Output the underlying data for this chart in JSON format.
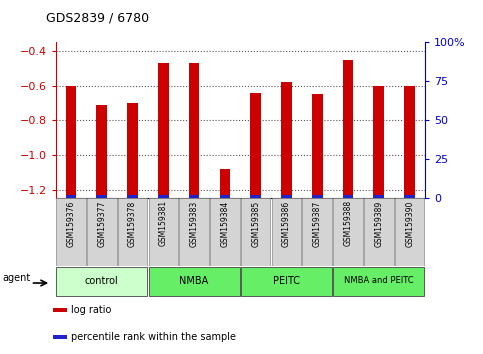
{
  "title": "GDS2839 / 6780",
  "samples": [
    "GSM159376",
    "GSM159377",
    "GSM159378",
    "GSM159381",
    "GSM159383",
    "GSM159384",
    "GSM159385",
    "GSM159386",
    "GSM159387",
    "GSM159388",
    "GSM159389",
    "GSM159390"
  ],
  "log_ratios": [
    -0.6,
    -0.71,
    -0.7,
    -0.47,
    -0.47,
    -1.08,
    -0.64,
    -0.58,
    -0.65,
    -0.45,
    -0.6,
    -0.6
  ],
  "percentile_ranks": [
    2,
    2,
    2,
    2,
    2,
    2,
    2,
    2,
    2,
    2,
    2,
    2
  ],
  "ylim_left": [
    -1.25,
    -0.35
  ],
  "ylim_right": [
    0,
    100
  ],
  "y_ticks_left": [
    -1.2,
    -1.0,
    -0.8,
    -0.6,
    -0.4
  ],
  "y_ticks_right": [
    0,
    25,
    50,
    75,
    100
  ],
  "bar_color_red": "#cc0000",
  "bar_color_blue": "#2222cc",
  "tick_color_left": "#cc0000",
  "tick_color_right": "#0000cc",
  "grid_color": "#555555",
  "bar_bg_color": "#d4d4d4",
  "group_defs": [
    {
      "label": "control",
      "start": 0,
      "end": 2,
      "color": "#ccffcc"
    },
    {
      "label": "NMBA",
      "start": 3,
      "end": 5,
      "color": "#66ee66"
    },
    {
      "label": "PEITC",
      "start": 6,
      "end": 8,
      "color": "#66ee66"
    },
    {
      "label": "NMBA and PEITC",
      "start": 9,
      "end": 11,
      "color": "#66ee66"
    }
  ],
  "legend_items": [
    {
      "color": "#cc0000",
      "label": "log ratio"
    },
    {
      "color": "#2222cc",
      "label": "percentile rank within the sample"
    }
  ],
  "red_bar_width": 0.35,
  "blue_bar_width": 0.35
}
